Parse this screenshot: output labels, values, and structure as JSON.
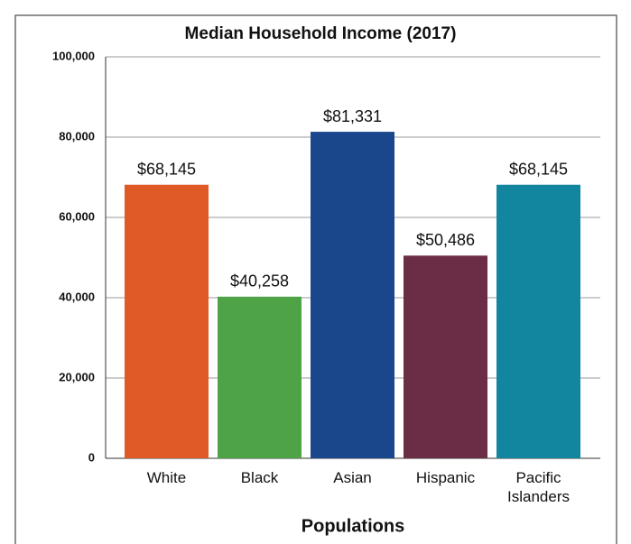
{
  "chart_data": {
    "type": "bar",
    "title": "Median Household Income (2017)",
    "x_label": "Populations",
    "categories": [
      "White",
      "Black",
      "Asian",
      "Hispanic",
      "Pacific Islanders"
    ],
    "values": [
      68145,
      40258,
      81331,
      50486,
      68145
    ],
    "value_labels": [
      "$68,145",
      "$40,258",
      "$81,331",
      "$50,486",
      "$68,145"
    ],
    "colors": [
      "#e05a28",
      "#4ea346",
      "#1a468c",
      "#6b2d45",
      "#11869e"
    ],
    "ylim": [
      0,
      100000
    ],
    "yticks": [
      0,
      {
        "value": 20000,
        "label": "20,000"
      },
      {
        "value": 40000,
        "label": "40,000"
      },
      {
        "value": 60000,
        "label": "60,000"
      },
      {
        "value": 80000,
        "label": "80,000"
      },
      {
        "value": 100000,
        "label": "100,000"
      }
    ],
    "grid": true
  }
}
